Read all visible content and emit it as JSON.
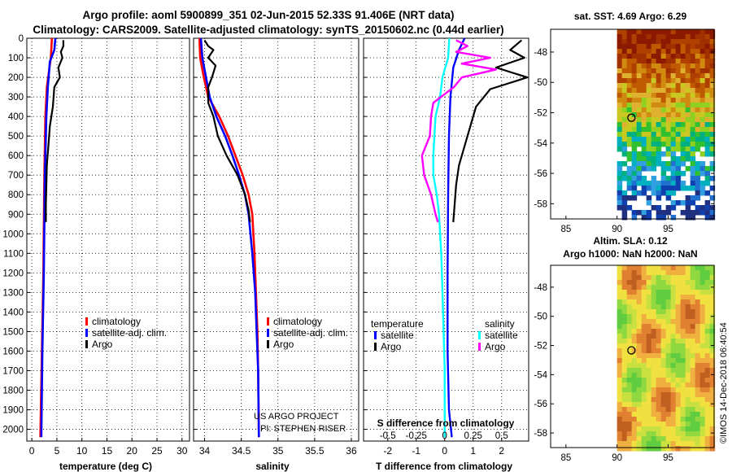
{
  "header": {
    "title_line1": "Argo profile: aoml 5900899_351 02-Jun-2015 52.33S 91.406E (NRT data)",
    "title_line2": "Climatology: CARS2009. Satellite-adjusted climatology: synTS_20150602.nc (0.44d earlier)"
  },
  "maps": {
    "sst_title": "sat. SST: 4.69 Argo: 6.29",
    "sla_title_1": "Altim. SLA: 0.12",
    "sla_title_2": "Argo h1000: NaN h2000: NaN",
    "lat_ticks": [
      "-48",
      "-50",
      "-52",
      "-54",
      "-56",
      "-58"
    ],
    "lon_ticks": [
      "85",
      "90",
      "95"
    ],
    "lat_range": [
      -59,
      -46.5
    ],
    "lon_range": [
      83.5,
      99.5
    ],
    "data_lon_range": [
      90,
      99.5
    ],
    "float_position": {
      "lon": 91.406,
      "lat": -52.33
    }
  },
  "watermark": "©IMOS 14-Dec-2018 06:40:54",
  "credits": {
    "line1": "US ARGO PROJECT",
    "line2": "PI: STEPHEN RISER"
  },
  "colors": {
    "climatology": "#ff0000",
    "satellite": "#0000ff",
    "argo": "#000000",
    "sat_diff_s": "#00ffff",
    "argo_diff_s": "#ff00ff"
  },
  "chart_data": [
    {
      "type": "line",
      "xlabel": "temperature (deg C)",
      "ylabel": "",
      "xlim": [
        -1,
        31.5
      ],
      "ylim": [
        2060,
        0
      ],
      "xticks": [
        "0",
        "5",
        "10",
        "15",
        "20",
        "25",
        "30"
      ],
      "xtick_values": [
        0,
        5,
        10,
        15,
        20,
        25,
        30
      ],
      "yticks": [
        "0",
        "100",
        "200",
        "300",
        "400",
        "500",
        "600",
        "700",
        "800",
        "900",
        "1000",
        "1100",
        "1200",
        "1300",
        "1400",
        "1500",
        "1600",
        "1700",
        "1800",
        "1900",
        "2000"
      ],
      "legend": [
        "climatology",
        "satellite-adj. clim.",
        "Argo"
      ],
      "series": [
        {
          "name": "climatology",
          "points": [
            [
              4.0,
              0
            ],
            [
              3.8,
              100
            ],
            [
              3.0,
              250
            ],
            [
              2.7,
              400
            ],
            [
              2.5,
              700
            ],
            [
              2.3,
              1200
            ],
            [
              2.0,
              1600
            ],
            [
              1.7,
              2040
            ]
          ]
        },
        {
          "name": "satellite-adj. clim.",
          "points": [
            [
              4.7,
              0
            ],
            [
              4.5,
              60
            ],
            [
              3.6,
              120
            ],
            [
              3.2,
              250
            ],
            [
              2.9,
              400
            ],
            [
              2.6,
              700
            ],
            [
              2.4,
              1200
            ],
            [
              2.1,
              1600
            ],
            [
              1.9,
              2040
            ]
          ]
        },
        {
          "name": "Argo",
          "points": [
            [
              6.3,
              10
            ],
            [
              6.3,
              40
            ],
            [
              5.8,
              70
            ],
            [
              6.1,
              100
            ],
            [
              5.3,
              150
            ],
            [
              5.6,
              200
            ],
            [
              4.5,
              250
            ],
            [
              4.2,
              350
            ],
            [
              3.6,
              450
            ],
            [
              3.3,
              550
            ],
            [
              3.0,
              650
            ],
            [
              2.9,
              750
            ],
            [
              2.8,
              850
            ],
            [
              2.8,
              940
            ]
          ]
        }
      ]
    },
    {
      "type": "line",
      "xlabel": "salinity",
      "ylabel": "",
      "xlim": [
        33.85,
        36.1
      ],
      "ylim": [
        2060,
        0
      ],
      "xticks": [
        "34",
        "34.5",
        "35",
        "35.5",
        "36"
      ],
      "xtick_values": [
        34,
        34.5,
        35,
        35.5,
        36
      ],
      "legend": [
        "climatology",
        "satellite-adj. clim.",
        "Argo"
      ],
      "series": [
        {
          "name": "climatology",
          "points": [
            [
              33.93,
              0
            ],
            [
              33.94,
              100
            ],
            [
              33.99,
              200
            ],
            [
              34.05,
              300
            ],
            [
              34.2,
              400
            ],
            [
              34.32,
              500
            ],
            [
              34.42,
              600
            ],
            [
              34.52,
              700
            ],
            [
              34.6,
              800
            ],
            [
              34.65,
              900
            ],
            [
              34.68,
              1100
            ],
            [
              34.7,
              1300
            ],
            [
              34.72,
              1500
            ],
            [
              34.73,
              1700
            ],
            [
              34.74,
              2040
            ]
          ]
        },
        {
          "name": "satellite-adj. clim.",
          "points": [
            [
              33.95,
              0
            ],
            [
              33.97,
              100
            ],
            [
              34.02,
              200
            ],
            [
              34.07,
              300
            ],
            [
              34.16,
              400
            ],
            [
              34.28,
              500
            ],
            [
              34.38,
              600
            ],
            [
              34.47,
              700
            ],
            [
              34.55,
              800
            ],
            [
              34.6,
              900
            ],
            [
              34.65,
              1100
            ],
            [
              34.69,
              1300
            ],
            [
              34.71,
              1500
            ],
            [
              34.73,
              1700
            ],
            [
              34.74,
              2040
            ]
          ]
        },
        {
          "name": "Argo",
          "points": [
            [
              34.0,
              10
            ],
            [
              34.05,
              40
            ],
            [
              34.12,
              60
            ],
            [
              34.05,
              100
            ],
            [
              34.15,
              140
            ],
            [
              34.1,
              200
            ],
            [
              34.05,
              250
            ],
            [
              34.05,
              330
            ],
            [
              34.12,
              400
            ],
            [
              34.18,
              500
            ],
            [
              34.3,
              600
            ],
            [
              34.45,
              700
            ],
            [
              34.55,
              800
            ],
            [
              34.6,
              880
            ],
            [
              34.62,
              940
            ]
          ]
        }
      ]
    },
    {
      "type": "line",
      "xlabel": "T difference from climatology",
      "ylabel": "",
      "xlim": [
        -2.85,
        2.95
      ],
      "ylim": [
        2060,
        0
      ],
      "xticks": [
        "-2",
        "-1",
        "0",
        "1",
        "2"
      ],
      "xtick_values": [
        -2,
        -1,
        0,
        1,
        2
      ],
      "top_axis_label": "S difference from climatology",
      "top_xticks": [
        "-0.5",
        "-0.25",
        "0",
        "0.25",
        "0.5"
      ],
      "top_xtick_values": [
        -0.5,
        -0.25,
        0,
        0.25,
        0.5
      ],
      "legend_groups": [
        {
          "heading": "temperature",
          "items": [
            "satellite",
            "Argo"
          ]
        },
        {
          "heading": "salinity",
          "items": [
            "satellite",
            "Argo"
          ]
        }
      ],
      "series": [
        {
          "name": "satellite (temperature)",
          "units": "T",
          "points": [
            [
              0.7,
              0
            ],
            [
              0.5,
              60
            ],
            [
              0.3,
              150
            ],
            [
              0.2,
              300
            ],
            [
              0.15,
              500
            ],
            [
              0.12,
              800
            ],
            [
              0.1,
              1200
            ],
            [
              0.1,
              1600
            ],
            [
              0.15,
              1900
            ],
            [
              0.25,
              2040
            ]
          ]
        },
        {
          "name": "Argo (temperature)",
          "units": "T",
          "points": [
            [
              2.7,
              10
            ],
            [
              2.3,
              60
            ],
            [
              2.8,
              100
            ],
            [
              1.8,
              150
            ],
            [
              2.9,
              200
            ],
            [
              1.6,
              260
            ],
            [
              1.1,
              350
            ],
            [
              0.9,
              450
            ],
            [
              0.7,
              550
            ],
            [
              0.5,
              650
            ],
            [
              0.4,
              750
            ],
            [
              0.35,
              850
            ],
            [
              0.3,
              940
            ]
          ]
        },
        {
          "name": "satellite (salinity)",
          "units": "S",
          "points": [
            [
              0.04,
              0
            ],
            [
              0.03,
              100
            ],
            [
              -0.02,
              200
            ],
            [
              -0.04,
              300
            ],
            [
              -0.08,
              400
            ],
            [
              -0.09,
              500
            ],
            [
              -0.1,
              600
            ],
            [
              -0.1,
              700
            ],
            [
              -0.07,
              800
            ],
            [
              -0.05,
              900
            ],
            [
              -0.03,
              1100
            ],
            [
              -0.02,
              1300
            ],
            [
              -0.01,
              1500
            ],
            [
              0.0,
              1700
            ],
            [
              0.0,
              2040
            ]
          ]
        },
        {
          "name": "Argo (salinity)",
          "units": "S",
          "points": [
            [
              0.1,
              10
            ],
            [
              0.2,
              40
            ],
            [
              0.1,
              70
            ],
            [
              0.4,
              100
            ],
            [
              0.15,
              130
            ],
            [
              0.45,
              160
            ],
            [
              0.15,
              200
            ],
            [
              0.08,
              250
            ],
            [
              -0.1,
              330
            ],
            [
              -0.12,
              400
            ],
            [
              -0.13,
              500
            ],
            [
              -0.2,
              600
            ],
            [
              -0.18,
              700
            ],
            [
              -0.12,
              800
            ],
            [
              -0.08,
              900
            ],
            [
              -0.06,
              940
            ]
          ]
        }
      ]
    }
  ]
}
